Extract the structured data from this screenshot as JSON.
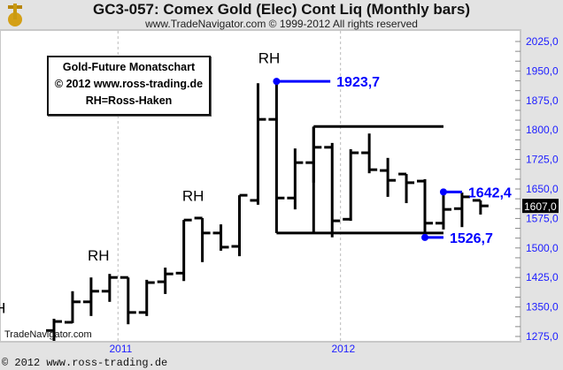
{
  "header": {
    "title": "GC3-057:  Comex Gold (Elec) Cont Liq  (Monthly bars)",
    "subtitle": "www.TradeNavigator.com © 1999-2012 All rights reserved"
  },
  "legend": {
    "line1": "Gold-Future Monatschart",
    "line2": "© 2012  www.ross-trading.de",
    "line3": "RH=Ross-Haken"
  },
  "watermark": "TradeNavigator.com",
  "footer": "© 2012  www.ross-trading.de",
  "colors": {
    "bars": "#000000",
    "annotation": "#0000ff",
    "axis_text": "#2020ff",
    "grid": "#bbbbbb"
  },
  "chart_data": {
    "type": "ohlc",
    "title": "GC3-057:  Comex Gold (Elec) Cont Liq  (Monthly bars)",
    "ylim": [
      1275,
      2025
    ],
    "yticks": [
      "2025,0",
      "1950,0",
      "1875,0",
      "1800,0",
      "1725,0",
      "1650,0",
      "1575,0",
      "1500,0",
      "1425,0",
      "1350,0",
      "1275,0"
    ],
    "ytick_values": [
      2025,
      1950,
      1875,
      1800,
      1725,
      1650,
      1575,
      1500,
      1425,
      1350,
      1275
    ],
    "xlabels": [
      {
        "label": "2011",
        "bar": 3.6
      },
      {
        "label": "2012",
        "bar": 15.6
      }
    ],
    "gridlines_bar": [
      3.45,
      15.45
    ],
    "bars": [
      {
        "o": 1290,
        "h": 1320,
        "l": 1255,
        "c": 1313
      },
      {
        "o": 1311,
        "h": 1390,
        "l": 1309,
        "c": 1363
      },
      {
        "o": 1363,
        "h": 1425,
        "l": 1327,
        "c": 1390
      },
      {
        "o": 1390,
        "h": 1434,
        "l": 1363,
        "c": 1425
      },
      {
        "o": 1425,
        "h": 1425,
        "l": 1306,
        "c": 1336
      },
      {
        "o": 1336,
        "h": 1419,
        "l": 1327,
        "c": 1412
      },
      {
        "o": 1414,
        "h": 1450,
        "l": 1383,
        "c": 1434
      },
      {
        "o": 1436,
        "h": 1571,
        "l": 1416,
        "c": 1571
      },
      {
        "o": 1576,
        "h": 1576,
        "l": 1464,
        "c": 1538
      },
      {
        "o": 1538,
        "h": 1560,
        "l": 1493,
        "c": 1502
      },
      {
        "o": 1504,
        "h": 1634,
        "l": 1479,
        "c": 1634
      },
      {
        "o": 1621,
        "h": 1919,
        "l": 1610,
        "c": 1827
      },
      {
        "o": 1827,
        "h": 1923.7,
        "l": 1538,
        "c": 1627
      },
      {
        "o": 1627,
        "h": 1753,
        "l": 1598,
        "c": 1717
      },
      {
        "o": 1717,
        "h": 1807,
        "l": 1666,
        "c": 1756
      },
      {
        "o": 1756,
        "h": 1767,
        "l": 1527,
        "c": 1569
      },
      {
        "o": 1573,
        "h": 1751,
        "l": 1569,
        "c": 1742
      },
      {
        "o": 1742,
        "h": 1791,
        "l": 1690,
        "c": 1699
      },
      {
        "o": 1697,
        "h": 1729,
        "l": 1630,
        "c": 1672
      },
      {
        "o": 1688,
        "h": 1688,
        "l": 1614,
        "c": 1666
      },
      {
        "o": 1670,
        "h": 1675,
        "l": 1526.7,
        "c": 1563
      },
      {
        "o": 1563,
        "h": 1642.4,
        "l": 1547,
        "c": 1598
      },
      {
        "o": 1600,
        "h": 1641,
        "l": 1553,
        "c": 1630
      },
      {
        "o": 1621,
        "h": 1621,
        "l": 1585,
        "c": 1607
      }
    ],
    "rh_labels": [
      {
        "text": "H",
        "bar": -2.9,
        "price": 1335
      },
      {
        "text": "RH",
        "bar": 2.4,
        "price": 1468
      },
      {
        "text": "RH",
        "bar": 7.5,
        "price": 1620
      },
      {
        "text": "RH",
        "bar": 11.6,
        "price": 1970
      }
    ],
    "box_lines": [
      {
        "from": 12,
        "to": 21,
        "price": 1538
      },
      {
        "from": 14,
        "to": 21,
        "price": 1809
      }
    ],
    "box_verticals": [
      {
        "bar": 14,
        "from": 1538,
        "to": 1809
      }
    ],
    "annotations": [
      {
        "label": "1923,7",
        "bar": 12,
        "price": 1923.7,
        "to": 14.9
      },
      {
        "label": "1642,4",
        "bar": 21,
        "price": 1642.4,
        "to": 22
      },
      {
        "label": "1526,7",
        "bar": 20,
        "price": 1526.7,
        "to": 21
      }
    ],
    "last_price": {
      "label": "1607,0",
      "price": 1607
    }
  }
}
